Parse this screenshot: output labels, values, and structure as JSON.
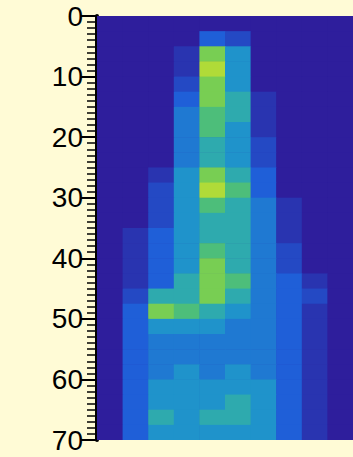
{
  "chart_data": {
    "type": "heatmap",
    "x_bins": [
      0,
      1,
      2,
      3,
      4,
      5,
      6,
      7,
      8,
      9,
      10
    ],
    "y_bins": [
      0,
      2.5,
      5,
      7.5,
      10,
      12.5,
      15,
      17.5,
      20,
      22.5,
      25,
      27.5,
      30,
      32.5,
      35,
      37.5,
      40,
      42.5,
      45,
      47.5,
      50,
      52.5,
      55,
      57.5,
      60,
      62.5,
      65,
      67.5,
      70
    ],
    "cells": [
      [
        0,
        0,
        0,
        0,
        0,
        0,
        0,
        0,
        0,
        0
      ],
      [
        0,
        0,
        0,
        0,
        0.3,
        0.2,
        0,
        0,
        0,
        0
      ],
      [
        0,
        0,
        0,
        0.1,
        0.8,
        0.5,
        0,
        0,
        0,
        0
      ],
      [
        0,
        0,
        0,
        0.1,
        0.9,
        0.5,
        0,
        0,
        0,
        0
      ],
      [
        0,
        0,
        0,
        0.2,
        0.8,
        0.5,
        0,
        0,
        0,
        0
      ],
      [
        0,
        0,
        0,
        0.3,
        0.8,
        0.6,
        0.1,
        0,
        0,
        0
      ],
      [
        0,
        0,
        0,
        0.4,
        0.7,
        0.6,
        0.1,
        0,
        0,
        0
      ],
      [
        0,
        0,
        0,
        0.4,
        0.7,
        0.5,
        0.1,
        0,
        0,
        0
      ],
      [
        0,
        0,
        0,
        0.4,
        0.6,
        0.5,
        0.2,
        0,
        0,
        0
      ],
      [
        0,
        0,
        0,
        0.4,
        0.6,
        0.5,
        0.2,
        0,
        0,
        0
      ],
      [
        0,
        0,
        0.1,
        0.5,
        0.8,
        0.6,
        0.3,
        0,
        0,
        0
      ],
      [
        0,
        0,
        0.2,
        0.5,
        0.9,
        0.7,
        0.3,
        0,
        0,
        0
      ],
      [
        0,
        0,
        0.2,
        0.5,
        0.7,
        0.6,
        0.4,
        0.1,
        0,
        0
      ],
      [
        0,
        0,
        0.2,
        0.5,
        0.6,
        0.6,
        0.4,
        0.1,
        0,
        0
      ],
      [
        0,
        0.1,
        0.3,
        0.5,
        0.6,
        0.6,
        0.4,
        0.1,
        0,
        0
      ],
      [
        0,
        0.1,
        0.3,
        0.5,
        0.7,
        0.6,
        0.4,
        0.2,
        0,
        0
      ],
      [
        0,
        0.1,
        0.3,
        0.5,
        0.8,
        0.6,
        0.4,
        0.2,
        0,
        0
      ],
      [
        0,
        0.1,
        0.3,
        0.6,
        0.8,
        0.7,
        0.4,
        0.3,
        0.1,
        0
      ],
      [
        0,
        0.2,
        0.6,
        0.6,
        0.8,
        0.6,
        0.4,
        0.3,
        0.2,
        0
      ],
      [
        0,
        0.3,
        0.8,
        0.7,
        0.6,
        0.5,
        0.4,
        0.3,
        0.1,
        0
      ],
      [
        0,
        0.3,
        0.5,
        0.5,
        0.5,
        0.4,
        0.4,
        0.3,
        0.1,
        0
      ],
      [
        0,
        0.3,
        0.4,
        0.4,
        0.4,
        0.4,
        0.4,
        0.3,
        0.1,
        0
      ],
      [
        0,
        0.3,
        0.4,
        0.4,
        0.4,
        0.4,
        0.4,
        0.3,
        0.1,
        0
      ],
      [
        0,
        0.3,
        0.4,
        0.5,
        0.4,
        0.5,
        0.4,
        0.3,
        0.1,
        0
      ],
      [
        0,
        0.3,
        0.5,
        0.5,
        0.5,
        0.5,
        0.5,
        0.3,
        0.1,
        0
      ],
      [
        0,
        0.3,
        0.5,
        0.5,
        0.5,
        0.6,
        0.5,
        0.3,
        0.1,
        0
      ],
      [
        0,
        0.3,
        0.6,
        0.5,
        0.6,
        0.6,
        0.5,
        0.3,
        0.1,
        0
      ],
      [
        0,
        0.3,
        0.5,
        0.5,
        0.5,
        0.5,
        0.5,
        0.3,
        0.1,
        0
      ]
    ],
    "color_range": [
      0,
      1
    ],
    "xlim": [
      0,
      10
    ],
    "ylim": [
      0,
      70
    ],
    "yticks": [
      0,
      10,
      20,
      30,
      40,
      50,
      60,
      70
    ],
    "grid": false,
    "tick_labels": "y"
  }
}
